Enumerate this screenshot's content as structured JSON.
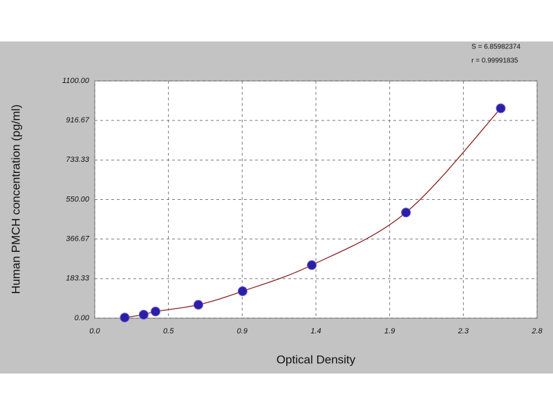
{
  "chart_data": {
    "type": "scatter",
    "annotations": [
      "S = 6.85982374",
      "r = 0.99991835"
    ],
    "x_label": "Optical Density",
    "y_label": "Human PMCH concentration (pg/ml)",
    "series": [
      {
        "color": "#2b1fa6",
        "line_color": "#8b2020",
        "x": [
          0.19,
          0.31,
          0.385,
          0.656,
          0.936,
          1.374,
          1.97,
          2.57
        ],
        "values": [
          3,
          16,
          31,
          62,
          125,
          246,
          490,
          973
        ]
      }
    ],
    "xlim": [
      0,
      2.8
    ],
    "xticks": [
      {
        "value": 0,
        "label": "0.0"
      },
      {
        "value": 0.4667,
        "label": "0.5"
      },
      {
        "value": 0.9333,
        "label": "0.9"
      },
      {
        "value": 1.4,
        "label": "1.4"
      },
      {
        "value": 1.8667,
        "label": "1.9"
      },
      {
        "value": 2.3333,
        "label": "2.3"
      },
      {
        "value": 2.8,
        "label": "2.8"
      }
    ],
    "ylim": [
      0,
      1100
    ],
    "yticks": [
      {
        "value": 0,
        "label": "0.00"
      },
      183.33,
      366.67,
      {
        "value": 550,
        "label": "550.00"
      },
      733.33,
      916.67,
      {
        "value": 1100,
        "label": "1100.00"
      }
    ],
    "grid": true,
    "fit_line": true
  }
}
